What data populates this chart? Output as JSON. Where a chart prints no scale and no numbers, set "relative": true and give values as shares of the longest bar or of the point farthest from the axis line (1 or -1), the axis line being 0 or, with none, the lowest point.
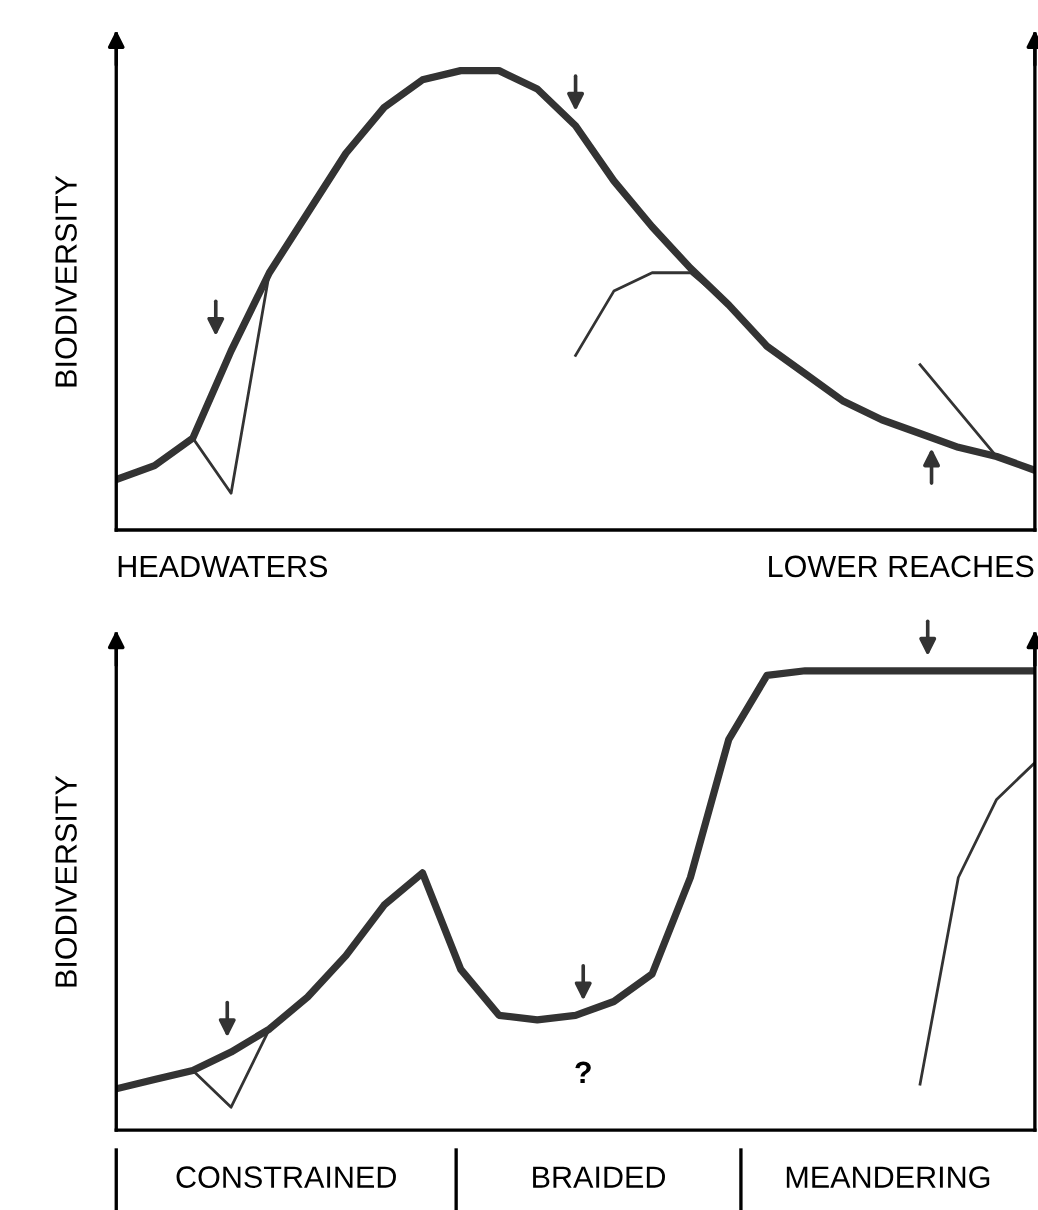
{
  "chart_data": [
    {
      "type": "line",
      "relative": true,
      "ylabel": "BIODIVERSITY",
      "categories": [
        null,
        null,
        null,
        null,
        null,
        null,
        null,
        null,
        null,
        null,
        null,
        null,
        null,
        null,
        null,
        null,
        null,
        null,
        null,
        null,
        null,
        null,
        null,
        null,
        null
      ],
      "series": [
        {
          "color": "#333333",
          "values": [
            0.11,
            0.14,
            0.2,
            0.39,
            0.56,
            0.69,
            0.82,
            0.92,
            0.98,
            1.0,
            1.0,
            0.96,
            0.88,
            0.76,
            0.66,
            0.57,
            0.49,
            0.4,
            0.34,
            0.28,
            0.24,
            0.21,
            0.18,
            0.16,
            0.13
          ]
        },
        {
          "color": "#333333",
          "values": [
            null,
            null,
            0.2,
            0.08,
            0.56,
            null,
            null,
            null,
            null,
            null,
            null,
            null,
            0.38,
            0.52,
            0.56,
            0.56,
            0.49,
            null,
            null,
            null,
            null,
            0.36,
            0.26,
            0.16,
            null
          ]
        }
      ],
      "annotations": [
        "HEADWATERS",
        "LOWER REACHES"
      ]
    },
    {
      "type": "line",
      "relative": true,
      "ylabel": "BIODIVERSITY",
      "categories": [
        null,
        null,
        null,
        null,
        null,
        null,
        null,
        null,
        null,
        null,
        null,
        null,
        null,
        null,
        null,
        null,
        null,
        null,
        null,
        null,
        null,
        null,
        null,
        null,
        null
      ],
      "series": [
        {
          "color": "#333333",
          "values": [
            0.09,
            0.11,
            0.13,
            0.17,
            0.22,
            0.29,
            0.38,
            0.49,
            0.56,
            0.35,
            0.25,
            0.24,
            0.25,
            0.28,
            0.34,
            0.55,
            0.85,
            0.99,
            1,
            1,
            1,
            1,
            1,
            1,
            1
          ]
        },
        {
          "color": "#333333",
          "values": [
            null,
            null,
            0.13,
            0.05,
            0.22,
            null,
            null,
            null,
            null,
            null,
            null,
            null,
            null,
            null,
            null,
            null,
            null,
            null,
            null,
            null,
            null,
            0.1,
            0.55,
            0.72,
            0.8
          ]
        }
      ],
      "annotations": [
        "?",
        "CONSTRAINED",
        "BRAIDED",
        "MEANDERING"
      ]
    }
  ]
}
